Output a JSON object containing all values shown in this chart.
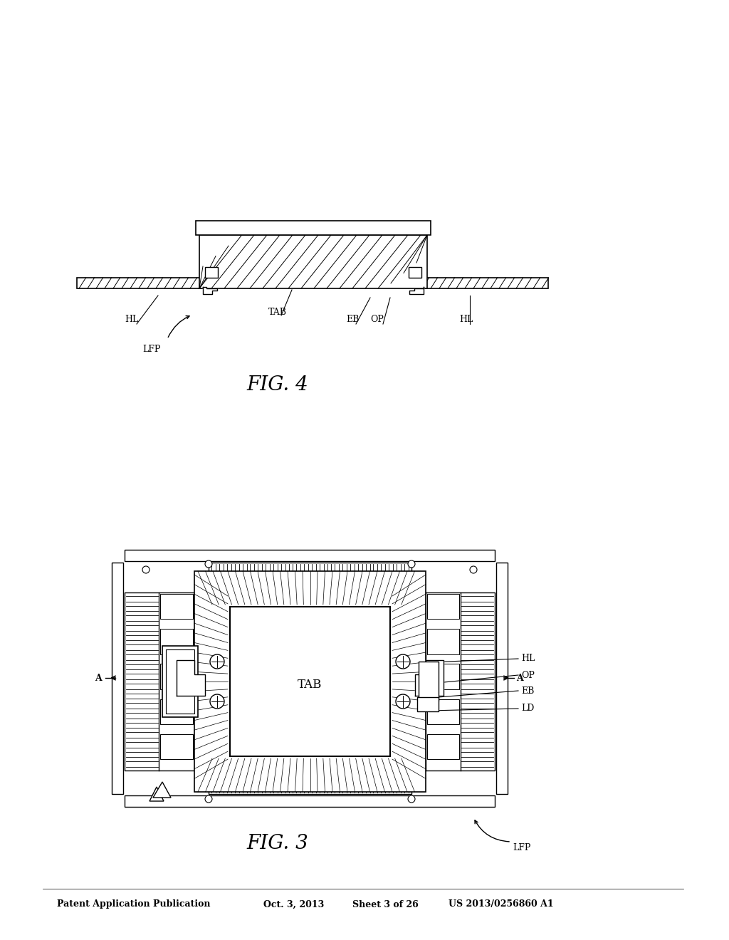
{
  "bg_color": "#ffffff",
  "line_color": "#000000",
  "header_text": "Patent Application Publication",
  "header_date": "Oct. 3, 2013",
  "header_sheet": "Sheet 3 of 26",
  "header_patent": "US 2013/0256860 A1",
  "fig3_title": "FIG. 3",
  "fig4_title": "FIG. 4"
}
